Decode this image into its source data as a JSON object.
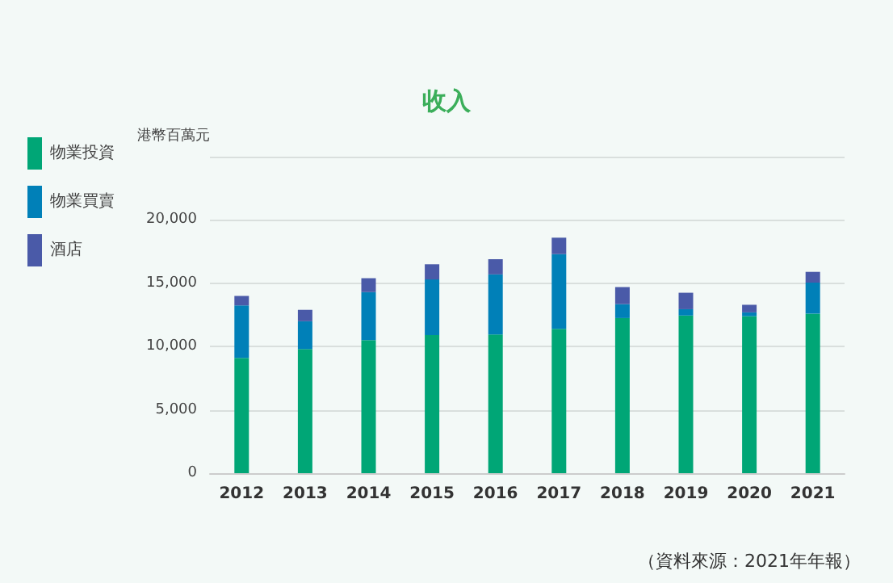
{
  "chart_data": {
    "type": "bar",
    "title": "收入",
    "ylabel": "港幣百萬元",
    "categories": [
      "2012",
      "2013",
      "2014",
      "2015",
      "2016",
      "2017",
      "2018",
      "2019",
      "2020",
      "2021"
    ],
    "series": [
      {
        "name": "物業投資",
        "color": "#00a676",
        "values": [
          9100,
          9800,
          10500,
          10900,
          10950,
          11400,
          12250,
          12450,
          12400,
          12600
        ]
      },
      {
        "name": "物業買賣",
        "color": "#0080b8",
        "values": [
          4150,
          2200,
          3800,
          4400,
          4750,
          5900,
          1100,
          500,
          300,
          2450
        ]
      },
      {
        "name": "酒店",
        "color": "#4a5aa8",
        "values": [
          750,
          900,
          1100,
          1200,
          1200,
          1300,
          1350,
          1300,
          600,
          850
        ]
      }
    ],
    "stacked": true,
    "ylim": [
      0,
      25000
    ],
    "yticks": [
      0,
      {
        "value": 5000,
        "label": "5,000"
      },
      {
        "value": 10000,
        "label": "10,000"
      },
      {
        "value": 15000,
        "label": "15,000"
      },
      {
        "value": 20000,
        "label": "20,000"
      },
      {
        "value": 25000,
        "label": null
      }
    ],
    "grid": "y",
    "legend": "left",
    "annotations": [
      "（資料來源：2021年年報）"
    ]
  }
}
